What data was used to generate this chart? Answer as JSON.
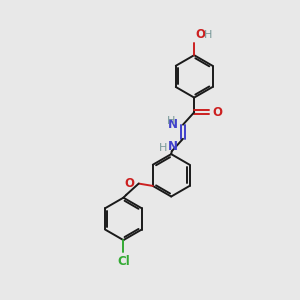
{
  "background_color": "#e8e8e8",
  "bond_color": "#1a1a1a",
  "N_color": "#4040cc",
  "O_color": "#cc2020",
  "Cl_color": "#33aa33",
  "H_color": "#7a9a9a",
  "figsize": [
    3.0,
    3.0
  ],
  "dpi": 100,
  "xlim": [
    0,
    10
  ],
  "ylim": [
    0,
    10
  ]
}
